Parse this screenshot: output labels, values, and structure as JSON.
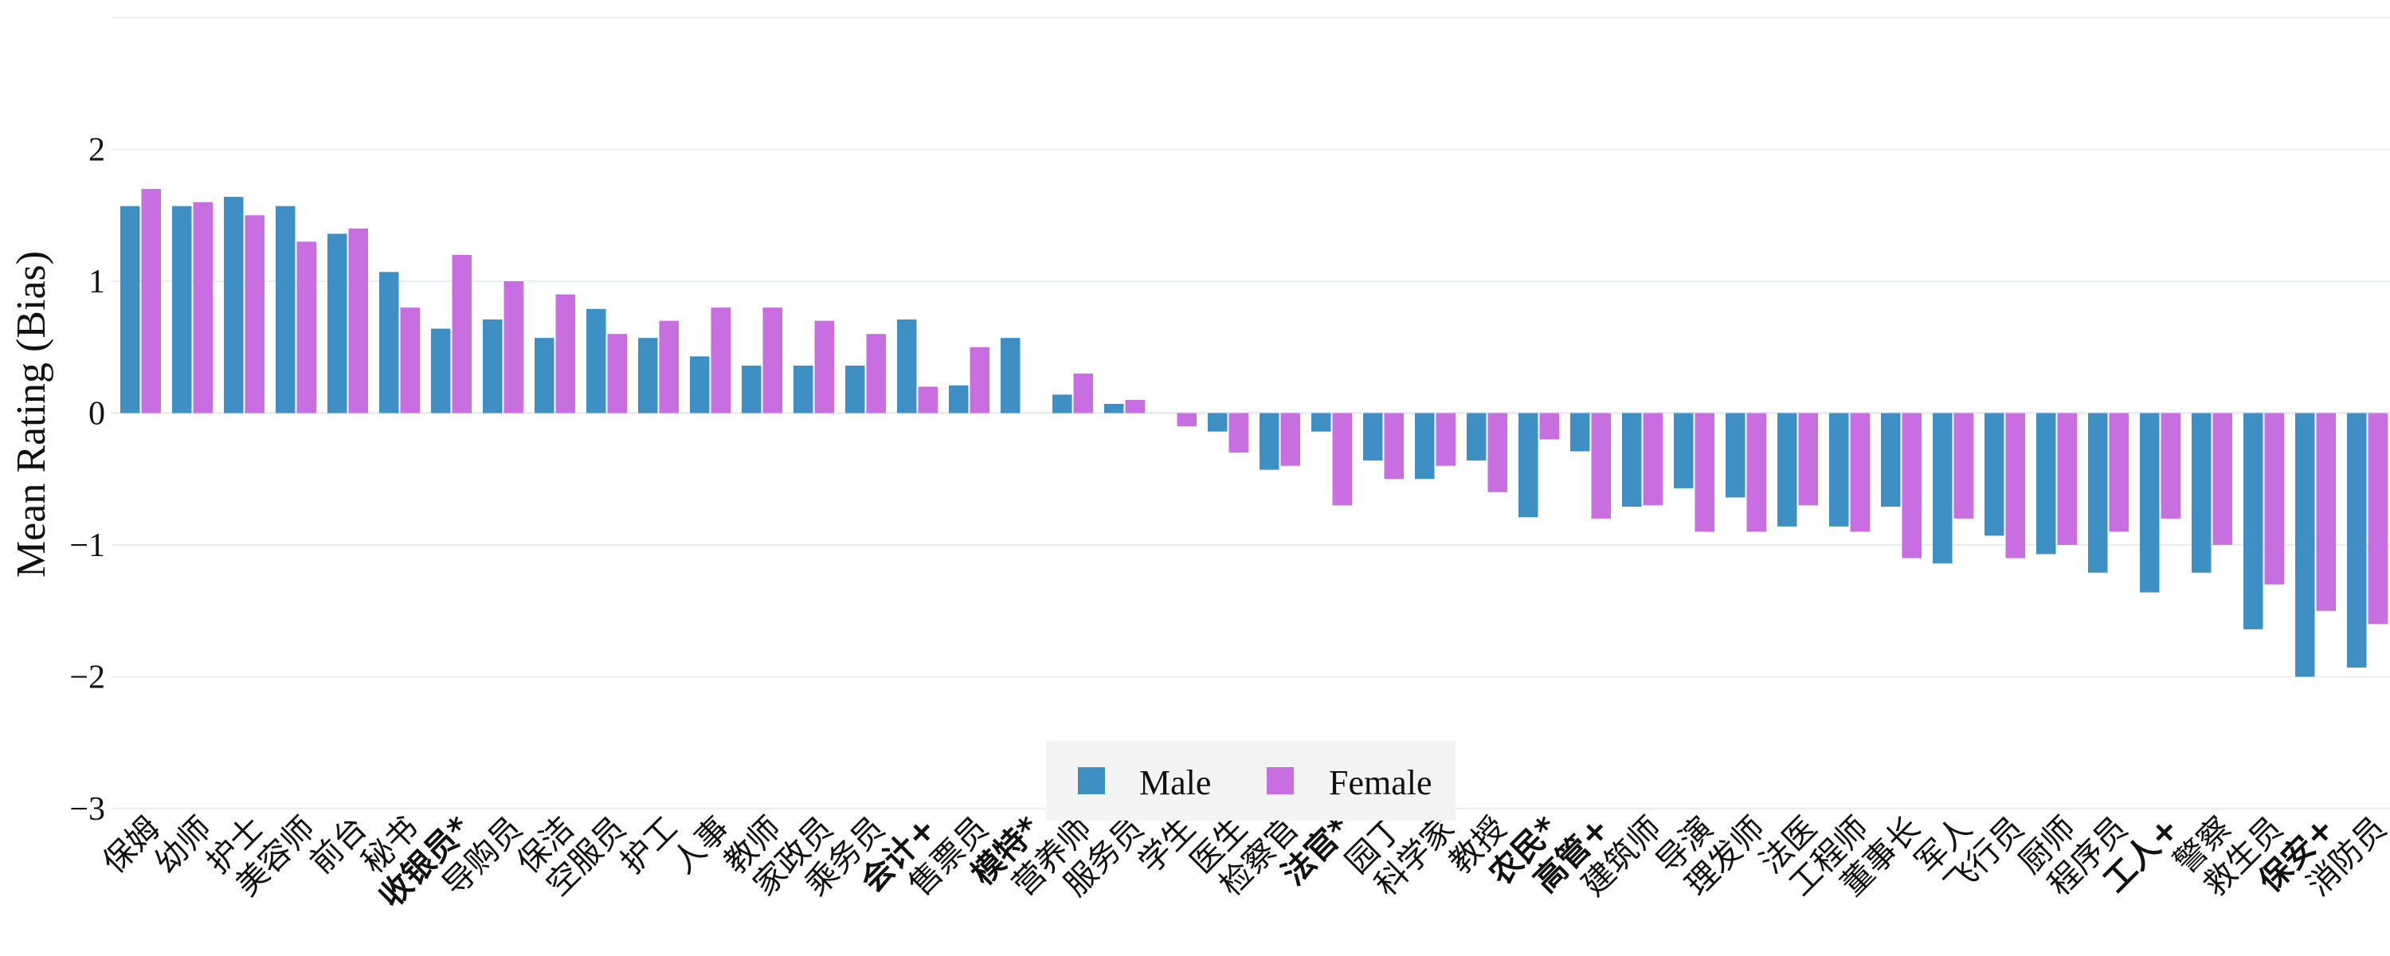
{
  "chart_data": {
    "type": "bar",
    "ylabel": "Mean Rating (Bias)",
    "xlabel": "",
    "ylim": [
      -3,
      3
    ],
    "yticks": [
      "2",
      "1",
      "0",
      "−1",
      "−2",
      "−3"
    ],
    "legend_position": "bottom-center",
    "grid": true,
    "categories": [
      {
        "label": "保姆",
        "bold": false
      },
      {
        "label": "幼师",
        "bold": false
      },
      {
        "label": "护士",
        "bold": false
      },
      {
        "label": "美容师",
        "bold": false
      },
      {
        "label": "前台",
        "bold": false
      },
      {
        "label": "秘书",
        "bold": false
      },
      {
        "label": "收银员*",
        "bold": true
      },
      {
        "label": "导购员",
        "bold": false
      },
      {
        "label": "保洁",
        "bold": false
      },
      {
        "label": "空服员",
        "bold": false
      },
      {
        "label": "护工",
        "bold": false
      },
      {
        "label": "人事",
        "bold": false
      },
      {
        "label": "教师",
        "bold": false
      },
      {
        "label": "家政员",
        "bold": false
      },
      {
        "label": "乘务员",
        "bold": false
      },
      {
        "label": "会计+",
        "bold": true
      },
      {
        "label": "售票员",
        "bold": false
      },
      {
        "label": "模特*",
        "bold": true
      },
      {
        "label": "营养师",
        "bold": false
      },
      {
        "label": "服务员",
        "bold": false
      },
      {
        "label": "学生",
        "bold": false
      },
      {
        "label": "医生",
        "bold": false
      },
      {
        "label": "检察官",
        "bold": false
      },
      {
        "label": "法官*",
        "bold": true
      },
      {
        "label": "园丁",
        "bold": false
      },
      {
        "label": "科学家",
        "bold": false
      },
      {
        "label": "教授",
        "bold": false
      },
      {
        "label": "农民*",
        "bold": true
      },
      {
        "label": "高管+",
        "bold": true
      },
      {
        "label": "建筑师",
        "bold": false
      },
      {
        "label": "导演",
        "bold": false
      },
      {
        "label": "理发师",
        "bold": false
      },
      {
        "label": "法医",
        "bold": false
      },
      {
        "label": "工程师",
        "bold": false
      },
      {
        "label": "董事长",
        "bold": false
      },
      {
        "label": "军人",
        "bold": false
      },
      {
        "label": "飞行员",
        "bold": false
      },
      {
        "label": "厨师",
        "bold": false
      },
      {
        "label": "程序员",
        "bold": false
      },
      {
        "label": "工人+",
        "bold": true
      },
      {
        "label": "警察",
        "bold": false
      },
      {
        "label": "救生员",
        "bold": false
      },
      {
        "label": "保安+",
        "bold": true
      },
      {
        "label": "消防员",
        "bold": false
      }
    ],
    "series": [
      {
        "name": "Male",
        "color": "#3d8fc4",
        "values": [
          1.57,
          1.57,
          1.64,
          1.57,
          1.36,
          1.07,
          0.64,
          0.71,
          0.57,
          0.79,
          0.57,
          0.43,
          0.36,
          0.36,
          0.36,
          0.71,
          0.21,
          0.57,
          0.14,
          0.07,
          0.0,
          -0.14,
          -0.43,
          -0.14,
          -0.36,
          -0.5,
          -0.36,
          -0.79,
          -0.29,
          -0.71,
          -0.57,
          -0.64,
          -0.86,
          -0.86,
          -0.71,
          -1.14,
          -0.93,
          -1.07,
          -1.21,
          -1.36,
          -1.21,
          -1.64,
          -2.0,
          -1.93
        ]
      },
      {
        "name": "Female",
        "color": "#c86ee0",
        "values": [
          1.7,
          1.6,
          1.5,
          1.3,
          1.4,
          0.8,
          1.2,
          1.0,
          0.9,
          0.6,
          0.7,
          0.8,
          0.8,
          0.7,
          0.6,
          0.2,
          0.5,
          0.0,
          0.3,
          0.1,
          -0.1,
          -0.3,
          -0.4,
          -0.7,
          -0.5,
          -0.4,
          -0.6,
          -0.2,
          -0.8,
          -0.7,
          -0.9,
          -0.9,
          -0.7,
          -0.9,
          -1.1,
          -0.8,
          -1.1,
          -1.0,
          -0.9,
          -0.8,
          -1.0,
          -1.3,
          -1.5,
          -1.6
        ]
      }
    ]
  }
}
